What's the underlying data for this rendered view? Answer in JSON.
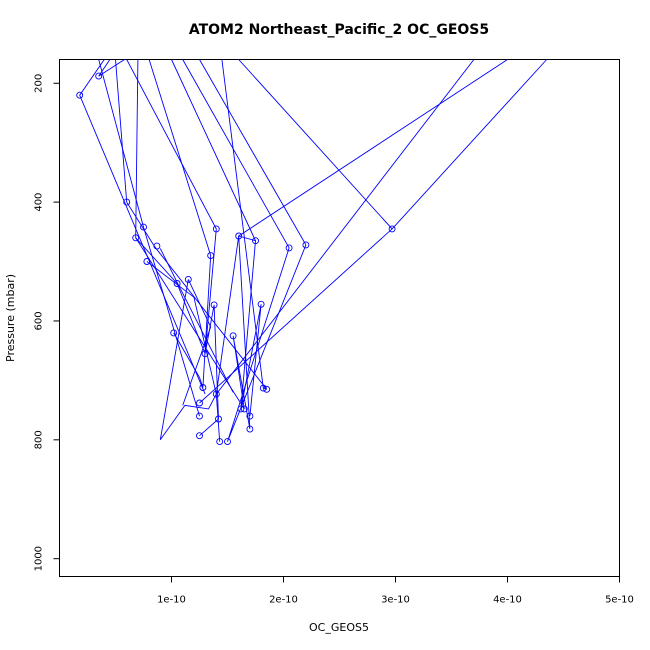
{
  "chart_data": {
    "type": "line",
    "title": "ATOM2 Northeast_Pacific_2 OC_GEOS5",
    "xlabel": "OC_GEOS5",
    "ylabel": "Pressure (mbar)",
    "xlim": [
      0,
      5e-10
    ],
    "ylim": [
      1030,
      160
    ],
    "y_reversed": true,
    "x_ticks": [
      {
        "value": 1e-10,
        "label": "1e-10"
      },
      {
        "value": 2e-10,
        "label": "2e-10"
      },
      {
        "value": 3e-10,
        "label": "3e-10"
      },
      {
        "value": 4e-10,
        "label": "4e-10"
      },
      {
        "value": 5e-10,
        "label": "5e-10"
      }
    ],
    "y_ticks": [
      {
        "value": 200,
        "label": "200"
      },
      {
        "value": 400,
        "label": "400"
      },
      {
        "value": 600,
        "label": "600"
      },
      {
        "value": 800,
        "label": "800"
      },
      {
        "value": 1000,
        "label": "1000"
      }
    ],
    "color": "#0000ff",
    "series": [
      {
        "points": [
          [
            5.8e-11,
            160
          ],
          [
            3.5e-11,
            188
          ],
          [
            4.5e-11,
            160
          ]
        ]
      },
      {
        "points": [
          [
            4e-11,
            160
          ],
          [
            1.8e-11,
            220
          ],
          [
            1.3e-10,
            723
          ]
        ]
      },
      {
        "points": [
          [
            5e-11,
            160
          ],
          [
            6e-11,
            400
          ],
          [
            8.5e-11,
            475
          ],
          [
            1.85e-10,
            715
          ]
        ]
      },
      {
        "points": [
          [
            3.5e-11,
            160
          ],
          [
            7.5e-11,
            442
          ],
          [
            1.25e-10,
            760
          ]
        ]
      },
      {
        "points": [
          [
            6e-11,
            160
          ],
          [
            1.4e-10,
            445
          ],
          [
            1.3e-10,
            655
          ],
          [
            1.38e-10,
            573
          ],
          [
            1.42e-10,
            765
          ],
          [
            1.25e-10,
            793
          ]
        ]
      },
      {
        "points": [
          [
            8e-11,
            160
          ],
          [
            1.35e-10,
            490
          ],
          [
            1.28e-10,
            712
          ]
        ]
      },
      {
        "points": [
          [
            7e-11,
            160
          ],
          [
            6.8e-11,
            460
          ],
          [
            1.65e-10,
            748
          ],
          [
            1.55e-10,
            625
          ],
          [
            1.7e-10,
            782
          ],
          [
            1.6e-10,
            457
          ],
          [
            1.4e-10,
            723
          ],
          [
            1.33e-10,
            748
          ],
          [
            1.12e-10,
            742
          ],
          [
            9e-11,
            800
          ],
          [
            1.15e-10,
            530
          ]
        ]
      },
      {
        "points": [
          [
            1e-10,
            160
          ],
          [
            1.75e-10,
            465
          ],
          [
            1.62e-10,
            748
          ],
          [
            1.8e-10,
            572
          ],
          [
            1.7e-10,
            760
          ]
        ]
      },
      {
        "points": [
          [
            1.1e-10,
            160
          ],
          [
            2.05e-10,
            477
          ],
          [
            1.5e-10,
            803
          ],
          [
            2.2e-10,
            472
          ]
        ]
      },
      {
        "points": [
          [
            1.25e-10,
            160
          ],
          [
            2.2e-10,
            472
          ]
        ]
      },
      {
        "points": [
          [
            1.6e-10,
            160
          ],
          [
            2.97e-10,
            445
          ],
          [
            1.25e-10,
            738
          ]
        ]
      },
      {
        "points": [
          [
            4e-10,
            160
          ],
          [
            1.6e-10,
            457
          ],
          [
            1.75e-10,
            465
          ]
        ]
      },
      {
        "points": [
          [
            3.7e-10,
            160
          ],
          [
            1.4e-10,
            723
          ],
          [
            1.43e-10,
            803
          ]
        ]
      },
      {
        "points": [
          [
            4.35e-10,
            160
          ],
          [
            2.97e-10,
            445
          ]
        ]
      },
      {
        "points": [
          [
            1.45e-10,
            160
          ],
          [
            1.82e-10,
            713
          ],
          [
            1.85e-10,
            715
          ]
        ]
      },
      {
        "points": [
          [
            6.8e-11,
            460
          ],
          [
            1.05e-10,
            537
          ],
          [
            1.3e-10,
            655
          ]
        ]
      },
      {
        "points": [
          [
            7.8e-11,
            500
          ],
          [
            1.2e-10,
            560
          ],
          [
            1.4e-10,
            723
          ]
        ]
      },
      {
        "points": [
          [
            9e-11,
            478
          ],
          [
            1.05e-10,
            535
          ],
          [
            1.55e-10,
            720
          ]
        ]
      },
      {
        "points": [
          [
            1.15e-10,
            530
          ],
          [
            1.35e-10,
            610
          ],
          [
            1.1e-10,
            742
          ]
        ]
      },
      {
        "points": [
          [
            1.02e-10,
            620
          ],
          [
            1.25e-10,
            695
          ],
          [
            1.28e-10,
            712
          ]
        ]
      }
    ],
    "markers": [
      [
        3.5e-11,
        188
      ],
      [
        1.8e-11,
        220
      ],
      [
        6e-11,
        400
      ],
      [
        1.4e-10,
        445
      ],
      [
        2.97e-10,
        445
      ],
      [
        7.5e-11,
        442
      ],
      [
        1.6e-10,
        457
      ],
      [
        1.75e-10,
        465
      ],
      [
        2.05e-10,
        477
      ],
      [
        2.2e-10,
        472
      ],
      [
        6.8e-11,
        460
      ],
      [
        8.7e-11,
        474
      ],
      [
        1.35e-10,
        490
      ],
      [
        7.8e-11,
        500
      ],
      [
        1.05e-10,
        537
      ],
      [
        1.15e-10,
        530
      ],
      [
        1.38e-10,
        573
      ],
      [
        1.8e-10,
        572
      ],
      [
        1.02e-10,
        620
      ],
      [
        1.55e-10,
        625
      ],
      [
        1.3e-10,
        655
      ],
      [
        1.28e-10,
        712
      ],
      [
        1.4e-10,
        723
      ],
      [
        1.82e-10,
        713
      ],
      [
        1.85e-10,
        715
      ],
      [
        1.25e-10,
        738
      ],
      [
        1.62e-10,
        748
      ],
      [
        1.65e-10,
        748
      ],
      [
        1.25e-10,
        760
      ],
      [
        1.7e-10,
        760
      ],
      [
        1.42e-10,
        765
      ],
      [
        1.7e-10,
        782
      ],
      [
        1.25e-10,
        793
      ],
      [
        1.43e-10,
        803
      ],
      [
        1.5e-10,
        803
      ]
    ]
  }
}
